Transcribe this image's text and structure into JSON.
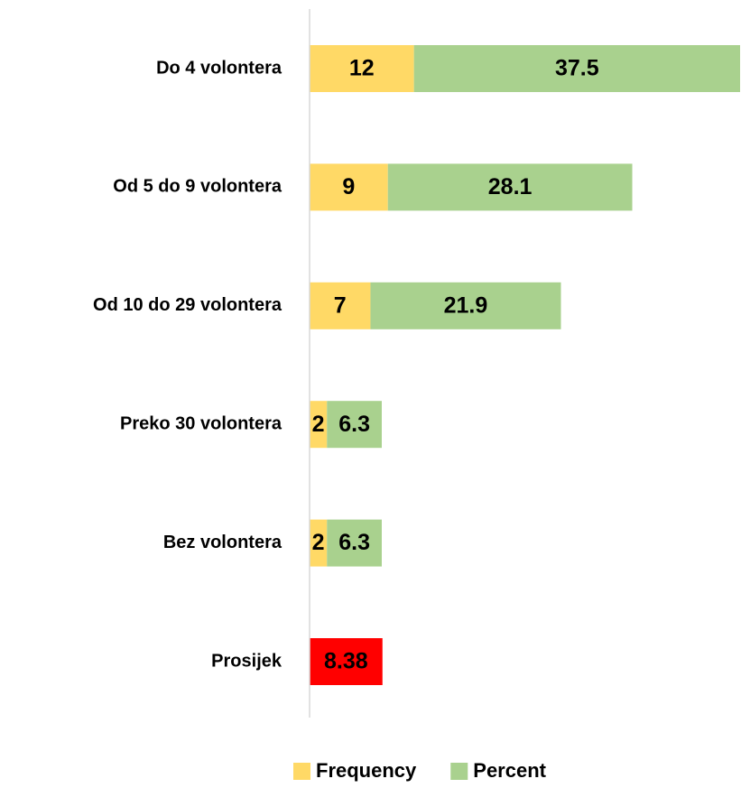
{
  "chart_data": {
    "type": "stacked-bar-horizontal",
    "categories": [
      "Do 4 volontera",
      "Od 5 do 9 volontera",
      "Od 10 do 29 volontera",
      "Preko 30 volontera",
      "Bez volontera",
      "Prosijek"
    ],
    "series": [
      {
        "name": "Frequency",
        "color": "#ffd966",
        "values": [
          12,
          9,
          7,
          2,
          2,
          null
        ]
      },
      {
        "name": "Percent",
        "color": "#a9d18e",
        "values": [
          37.5,
          28.1,
          21.9,
          6.3,
          6.3,
          null
        ]
      },
      {
        "color": "#ff0000",
        "values": [
          null,
          null,
          null,
          null,
          null,
          8.38
        ]
      }
    ],
    "legend": "bottom"
  }
}
